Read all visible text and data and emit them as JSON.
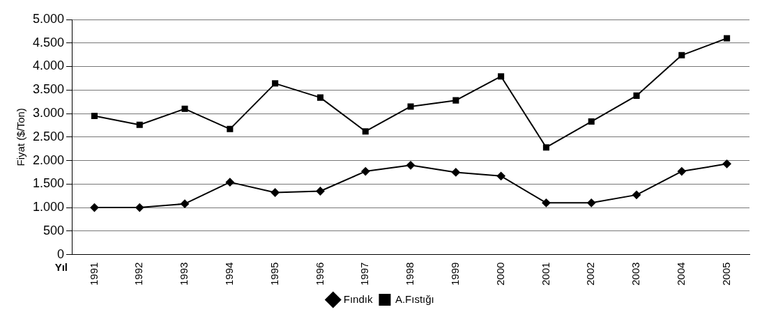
{
  "chart_data": {
    "type": "line",
    "ylabel": "Fiyat ($/Ton)",
    "xlabel": "Yıl",
    "categories": [
      "1991",
      "1992",
      "1993",
      "1994",
      "1995",
      "1996",
      "1997",
      "1998",
      "1999",
      "2000",
      "2001",
      "2002",
      "2003",
      "2004",
      "2005"
    ],
    "series": [
      {
        "name": "Fındık",
        "color": "#000000",
        "marker": "diamond",
        "values": [
          1000,
          1000,
          1080,
          1540,
          1320,
          1350,
          1770,
          1900,
          1750,
          1670,
          1100,
          1100,
          1270,
          1770,
          1930
        ]
      },
      {
        "name": "A.Fıstığı",
        "color": "#000000",
        "marker": "square",
        "values": [
          2950,
          2760,
          3100,
          2670,
          3640,
          3340,
          2620,
          3150,
          3280,
          3790,
          2280,
          2830,
          3380,
          4240,
          4600
        ]
      }
    ],
    "ylim": [
      0,
      5000
    ],
    "yticks": [
      {
        "value": 0,
        "label": "0"
      },
      {
        "value": 500,
        "label": "500"
      },
      {
        "value": 1000,
        "label": "1.000"
      },
      {
        "value": 1500,
        "label": "1.500"
      },
      {
        "value": 2000,
        "label": "2.000"
      },
      {
        "value": 2500,
        "label": "2.500"
      },
      {
        "value": 3000,
        "label": "3.000"
      },
      {
        "value": 3500,
        "label": "3.500"
      },
      {
        "value": 4000,
        "label": "4.000"
      },
      {
        "value": 4500,
        "label": "4.500"
      },
      {
        "value": 5000,
        "label": "5.000"
      }
    ],
    "grid": "y",
    "legend": "bottom",
    "line_style": "solid"
  }
}
